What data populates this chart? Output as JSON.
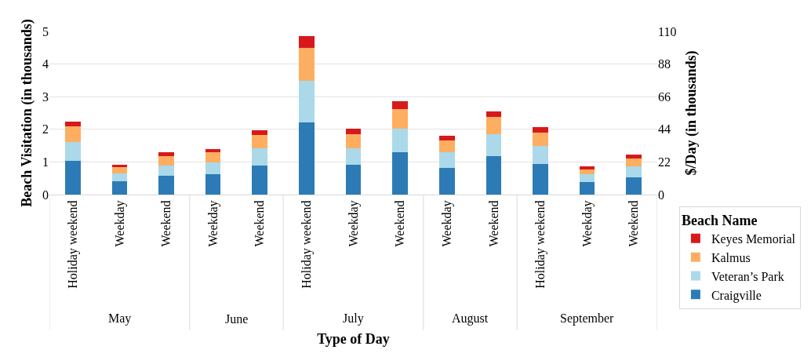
{
  "chart_data": {
    "type": "bar",
    "stacked": true,
    "xlabel": "Type of Day",
    "ylabel": "Beach Visitation (in thousands)",
    "y2label": "$/Day (in thousands)",
    "legend_title": "Beach Name",
    "categories": [
      "Holiday weekend",
      "Weekday",
      "Weekend",
      "Weekday",
      "Weekend",
      "Holiday weekend",
      "Weekday",
      "Weekend",
      "Weekday",
      "Weekend",
      "Holiday weekend",
      "Weekday",
      "Weekend"
    ],
    "annotations": [
      "May",
      "June",
      "July",
      "August",
      "September"
    ],
    "series": [
      {
        "name": "Craigville",
        "color": "#2c7bb6",
        "values": [
          1.04,
          0.42,
          0.58,
          0.63,
          0.9,
          2.22,
          0.91,
          1.3,
          0.82,
          1.18,
          0.94,
          0.38,
          0.54
        ]
      },
      {
        "name": "Veteran’s Park",
        "color": "#abd9e9",
        "values": [
          0.56,
          0.22,
          0.32,
          0.35,
          0.51,
          1.27,
          0.51,
          0.73,
          0.47,
          0.66,
          0.54,
          0.24,
          0.32
        ]
      },
      {
        "name": "Kalmus",
        "color": "#fdae61",
        "values": [
          0.48,
          0.2,
          0.28,
          0.31,
          0.41,
          1.01,
          0.43,
          0.59,
          0.36,
          0.53,
          0.43,
          0.16,
          0.24
        ]
      },
      {
        "name": "Keyes Memorial",
        "color": "#d7191c",
        "values": [
          0.16,
          0.07,
          0.11,
          0.11,
          0.16,
          0.36,
          0.16,
          0.24,
          0.15,
          0.19,
          0.16,
          0.08,
          0.12
        ]
      }
    ],
    "ylim": [
      0,
      5
    ],
    "yticks": [
      0,
      1,
      2,
      3,
      4,
      5
    ],
    "y2lim": [
      0,
      110
    ],
    "y2ticks": [
      0,
      22,
      44,
      66,
      88,
      110
    ],
    "grid": "y",
    "legend": "bottom right"
  }
}
